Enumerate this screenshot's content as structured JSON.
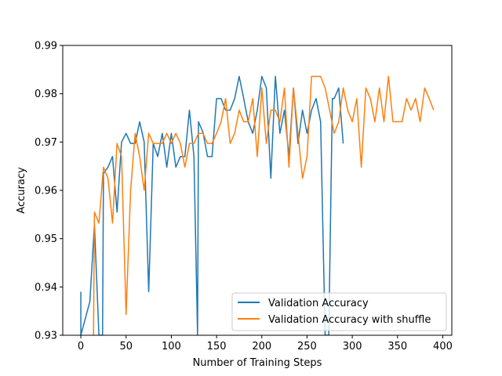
{
  "chart_data": {
    "type": "line",
    "title": "",
    "xlabel": "Number of Training Steps",
    "ylabel": "Accuracy",
    "xlim": [
      -20,
      410
    ],
    "ylim": [
      0.93,
      0.99
    ],
    "xticks": [
      0,
      50,
      100,
      150,
      200,
      250,
      300,
      350,
      400
    ],
    "xtick_labels": [
      "0",
      "50",
      "100",
      "150",
      "200",
      "250",
      "300",
      "350",
      "400"
    ],
    "yticks": [
      0.93,
      0.94,
      0.95,
      0.96,
      0.97,
      0.98,
      0.99
    ],
    "ytick_labels": [
      "0.93",
      "0.94",
      "0.95",
      "0.96",
      "0.97",
      "0.98",
      "0.99"
    ],
    "legend_position": "lower-right",
    "series": [
      {
        "name": "Validation Accuracy",
        "color": "#1f77b4",
        "x": [
          0,
          0,
          10,
          15,
          20,
          24,
          25,
          30,
          35,
          40,
          45,
          50,
          55,
          60,
          65,
          70,
          75,
          80,
          85,
          90,
          95,
          100,
          105,
          110,
          115,
          120,
          125,
          129,
          130,
          135,
          140,
          145,
          150,
          155,
          160,
          165,
          170,
          175,
          180,
          185,
          190,
          195,
          200,
          205,
          210,
          215,
          220,
          225,
          230,
          235,
          240,
          245,
          250,
          255,
          260,
          265,
          270,
          272,
          274,
          278,
          280,
          285,
          290
        ],
        "values": [
          0.939,
          0.93,
          0.937,
          0.953,
          0.93,
          0.93,
          0.9635,
          0.9648,
          0.967,
          0.9555,
          0.97,
          0.9718,
          0.9697,
          0.9697,
          0.9742,
          0.97,
          0.939,
          0.9697,
          0.967,
          0.9718,
          0.9648,
          0.9718,
          0.9648,
          0.967,
          0.967,
          0.9766,
          0.967,
          0.93,
          0.9742,
          0.972,
          0.967,
          0.967,
          0.979,
          0.979,
          0.9766,
          0.9766,
          0.979,
          0.9836,
          0.979,
          0.9742,
          0.9718,
          0.9766,
          0.9836,
          0.9812,
          0.9625,
          0.9836,
          0.9718,
          0.9766,
          0.967,
          0.9812,
          0.9697,
          0.9766,
          0.9718,
          0.9766,
          0.979,
          0.9742,
          0.93,
          0.93,
          0.93,
          0.979,
          0.979,
          0.9812,
          0.9697
        ]
      },
      {
        "name": "Validation Accuracy with shuffle",
        "color": "#ff7f0e",
        "x": [
          14,
          15,
          20,
          25,
          30,
          35,
          40,
          45,
          50,
          55,
          60,
          65,
          70,
          75,
          80,
          85,
          90,
          95,
          100,
          105,
          110,
          115,
          120,
          125,
          130,
          135,
          140,
          145,
          150,
          155,
          160,
          165,
          170,
          175,
          180,
          185,
          190,
          195,
          200,
          205,
          210,
          215,
          220,
          225,
          230,
          235,
          240,
          245,
          250,
          255,
          260,
          265,
          270,
          275,
          280,
          285,
          290,
          295,
          300,
          305,
          310,
          315,
          320,
          325,
          330,
          335,
          340,
          345,
          350,
          355,
          360,
          365,
          370,
          375,
          380,
          385,
          390
        ],
        "values": [
          0.93,
          0.9555,
          0.9532,
          0.9648,
          0.9625,
          0.9532,
          0.9697,
          0.967,
          0.9343,
          0.96,
          0.9718,
          0.967,
          0.96,
          0.9718,
          0.9697,
          0.9697,
          0.9697,
          0.9718,
          0.9697,
          0.9718,
          0.9697,
          0.9648,
          0.9697,
          0.9697,
          0.9718,
          0.9718,
          0.9697,
          0.9697,
          0.9718,
          0.9742,
          0.979,
          0.9697,
          0.9718,
          0.9766,
          0.9742,
          0.9742,
          0.979,
          0.967,
          0.9812,
          0.9697,
          0.9766,
          0.9766,
          0.9742,
          0.9812,
          0.9648,
          0.9812,
          0.9718,
          0.9625,
          0.967,
          0.9836,
          0.9836,
          0.9836,
          0.9812,
          0.9766,
          0.9718,
          0.9742,
          0.9812,
          0.9766,
          0.9742,
          0.979,
          0.9648,
          0.9812,
          0.979,
          0.9742,
          0.9812,
          0.9742,
          0.9836,
          0.9742,
          0.9742,
          0.9742,
          0.979,
          0.9766,
          0.979,
          0.9742,
          0.9812,
          0.979,
          0.9766
        ]
      }
    ]
  }
}
